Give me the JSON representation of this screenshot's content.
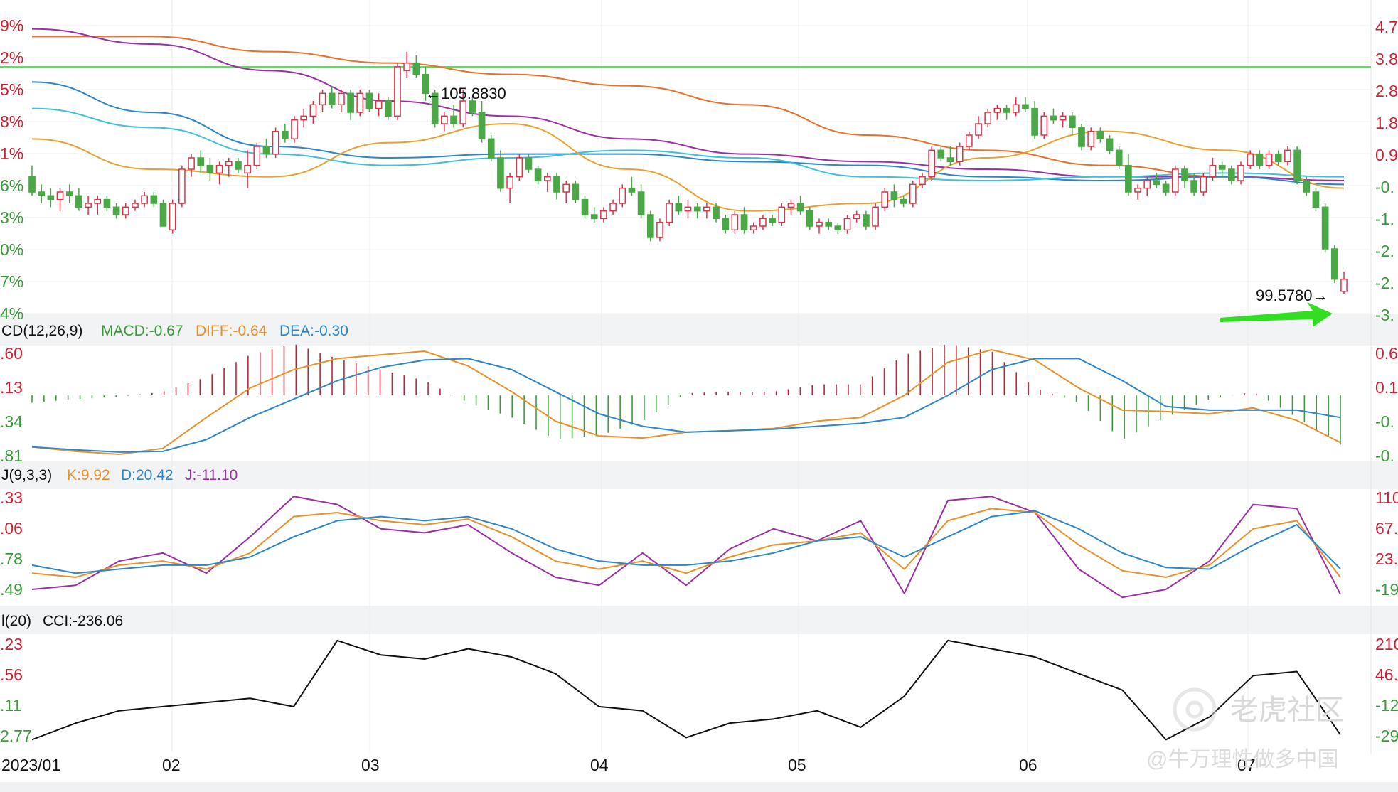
{
  "chart_data": {
    "type": "candlestick",
    "x_ticks": [
      "2023/01",
      "02",
      "03",
      "04",
      "05",
      "06",
      "07"
    ],
    "price_panel": {
      "left_axis_labels": [
        "9%",
        "2%",
        "5%",
        "8%",
        "1%",
        "6%",
        "3%",
        "0%",
        "7%",
        "4%"
      ],
      "right_axis_labels": [
        "4.7",
        "3.8",
        "2.8",
        "1.8",
        "0.9",
        "-0.",
        "-1.",
        "-2.",
        "-2.",
        "-3."
      ],
      "price_range": [
        99.2,
        106.7
      ],
      "horizontal_line": 105.5,
      "annotations": {
        "high": "←105.8830",
        "low": "99.5780→"
      },
      "candles": [
        [
          102.6,
          102.9,
          102.1,
          102.2
        ],
        [
          102.2,
          102.4,
          101.9,
          102.1
        ],
        [
          102.1,
          102.3,
          101.8,
          102.0
        ],
        [
          102.0,
          102.3,
          101.7,
          102.2
        ],
        [
          102.2,
          102.4,
          101.9,
          102.1
        ],
        [
          102.1,
          102.3,
          101.7,
          101.8
        ],
        [
          101.8,
          102.1,
          101.6,
          101.9
        ],
        [
          101.9,
          102.1,
          101.6,
          102.0
        ],
        [
          102.0,
          102.1,
          101.7,
          101.8
        ],
        [
          101.8,
          101.9,
          101.5,
          101.6
        ],
        [
          101.6,
          101.9,
          101.5,
          101.8
        ],
        [
          101.8,
          102.0,
          101.7,
          101.9
        ],
        [
          101.9,
          102.2,
          101.8,
          102.1
        ],
        [
          102.1,
          102.2,
          101.8,
          101.9
        ],
        [
          101.9,
          102.0,
          101.3,
          101.3
        ],
        [
          101.2,
          102.0,
          101.1,
          101.9
        ],
        [
          101.9,
          102.9,
          101.8,
          102.8
        ],
        [
          102.8,
          103.2,
          102.6,
          103.1
        ],
        [
          103.1,
          103.3,
          102.7,
          102.9
        ],
        [
          102.9,
          103.1,
          102.5,
          102.7
        ],
        [
          102.7,
          103.0,
          102.4,
          102.9
        ],
        [
          102.9,
          103.1,
          102.6,
          103.0
        ],
        [
          103.0,
          103.1,
          102.7,
          102.8
        ],
        [
          102.7,
          103.3,
          102.3,
          102.9
        ],
        [
          102.9,
          103.5,
          102.8,
          103.4
        ],
        [
          103.4,
          103.6,
          103.1,
          103.2
        ],
        [
          103.2,
          103.9,
          103.1,
          103.8
        ],
        [
          103.8,
          104.0,
          103.5,
          103.6
        ],
        [
          103.6,
          104.2,
          103.5,
          104.1
        ],
        [
          104.1,
          104.4,
          103.9,
          104.2
        ],
        [
          104.2,
          104.6,
          104.0,
          104.5
        ],
        [
          104.5,
          104.9,
          104.3,
          104.8
        ],
        [
          104.8,
          105.0,
          104.4,
          104.5
        ],
        [
          104.5,
          104.9,
          104.3,
          104.8
        ],
        [
          104.8,
          104.9,
          104.1,
          104.3
        ],
        [
          104.3,
          104.9,
          104.2,
          104.8
        ],
        [
          104.8,
          104.9,
          104.3,
          104.4
        ],
        [
          104.4,
          104.8,
          104.2,
          104.6
        ],
        [
          104.6,
          104.7,
          104.1,
          104.2
        ],
        [
          104.2,
          105.6,
          104.1,
          105.5
        ],
        [
          105.4,
          105.9,
          105.2,
          105.6
        ],
        [
          105.6,
          105.8,
          105.2,
          105.3
        ],
        [
          105.3,
          105.5,
          104.6,
          104.8
        ],
        [
          104.8,
          104.9,
          103.9,
          104.0
        ],
        [
          104.0,
          104.3,
          103.8,
          104.2
        ],
        [
          104.2,
          104.5,
          103.9,
          104.0
        ],
        [
          104.0,
          104.9,
          103.9,
          104.6
        ],
        [
          104.6,
          104.7,
          104.2,
          104.3
        ],
        [
          104.3,
          104.6,
          103.5,
          103.6
        ],
        [
          103.6,
          103.7,
          103.0,
          103.1
        ],
        [
          103.1,
          103.3,
          102.2,
          102.3
        ],
        [
          102.3,
          102.7,
          101.9,
          102.6
        ],
        [
          102.6,
          103.2,
          102.5,
          103.1
        ],
        [
          103.1,
          103.2,
          102.7,
          102.8
        ],
        [
          102.8,
          102.9,
          102.4,
          102.5
        ],
        [
          102.5,
          102.7,
          102.2,
          102.6
        ],
        [
          102.6,
          102.7,
          102.0,
          102.2
        ],
        [
          102.2,
          102.5,
          101.9,
          102.4
        ],
        [
          102.4,
          102.5,
          101.9,
          102.0
        ],
        [
          102.0,
          102.1,
          101.5,
          101.6
        ],
        [
          101.6,
          101.8,
          101.4,
          101.5
        ],
        [
          101.5,
          101.8,
          101.4,
          101.7
        ],
        [
          101.7,
          102.0,
          101.6,
          101.9
        ],
        [
          101.9,
          102.4,
          101.8,
          102.3
        ],
        [
          102.3,
          102.6,
          102.1,
          102.2
        ],
        [
          102.2,
          102.4,
          101.5,
          101.6
        ],
        [
          101.6,
          101.7,
          100.9,
          101.0
        ],
        [
          101.0,
          101.5,
          100.9,
          101.4
        ],
        [
          101.4,
          102.0,
          101.3,
          101.9
        ],
        [
          101.9,
          102.1,
          101.6,
          101.7
        ],
        [
          101.7,
          102.0,
          101.5,
          101.8
        ],
        [
          101.8,
          101.9,
          101.5,
          101.7
        ],
        [
          101.7,
          101.9,
          101.5,
          101.8
        ],
        [
          101.8,
          101.9,
          101.4,
          101.5
        ],
        [
          101.5,
          101.6,
          101.1,
          101.2
        ],
        [
          101.2,
          101.7,
          101.1,
          101.6
        ],
        [
          101.6,
          101.8,
          101.1,
          101.2
        ],
        [
          101.2,
          101.4,
          101.1,
          101.3
        ],
        [
          101.3,
          101.6,
          101.2,
          101.5
        ],
        [
          101.5,
          101.6,
          101.3,
          101.4
        ],
        [
          101.4,
          101.9,
          101.3,
          101.8
        ],
        [
          101.8,
          102.0,
          101.6,
          101.9
        ],
        [
          101.9,
          102.1,
          101.6,
          101.7
        ],
        [
          101.7,
          101.8,
          101.2,
          101.3
        ],
        [
          101.3,
          101.5,
          101.1,
          101.4
        ],
        [
          101.4,
          101.5,
          101.2,
          101.3
        ],
        [
          101.3,
          101.4,
          101.1,
          101.2
        ],
        [
          101.2,
          101.6,
          101.1,
          101.5
        ],
        [
          101.5,
          101.7,
          101.4,
          101.6
        ],
        [
          101.6,
          101.7,
          101.2,
          101.3
        ],
        [
          101.3,
          101.9,
          101.2,
          101.8
        ],
        [
          101.8,
          102.3,
          101.7,
          102.2
        ],
        [
          102.2,
          102.4,
          101.8,
          102.0
        ],
        [
          102.0,
          102.1,
          101.8,
          101.9
        ],
        [
          101.9,
          102.5,
          101.8,
          102.4
        ],
        [
          102.4,
          102.7,
          102.3,
          102.6
        ],
        [
          102.6,
          103.4,
          102.5,
          103.3
        ],
        [
          103.3,
          103.4,
          103.0,
          103.1
        ],
        [
          103.1,
          103.4,
          102.9,
          103.0
        ],
        [
          103.0,
          103.5,
          102.9,
          103.4
        ],
        [
          103.4,
          103.8,
          103.3,
          103.7
        ],
        [
          103.7,
          104.2,
          103.6,
          104.0
        ],
        [
          104.0,
          104.4,
          103.9,
          104.3
        ],
        [
          104.3,
          104.5,
          104.1,
          104.4
        ],
        [
          104.4,
          104.5,
          104.1,
          104.3
        ],
        [
          104.3,
          104.7,
          104.2,
          104.5
        ],
        [
          104.5,
          104.7,
          104.3,
          104.4
        ],
        [
          104.4,
          104.6,
          103.6,
          103.7
        ],
        [
          103.7,
          104.3,
          103.6,
          104.2
        ],
        [
          104.2,
          104.4,
          104.0,
          104.1
        ],
        [
          104.1,
          104.3,
          103.9,
          104.2
        ],
        [
          104.2,
          104.3,
          103.7,
          103.9
        ],
        [
          103.9,
          104.0,
          103.3,
          103.4
        ],
        [
          103.4,
          103.9,
          103.3,
          103.8
        ],
        [
          103.8,
          103.9,
          103.5,
          103.6
        ],
        [
          103.6,
          103.7,
          103.2,
          103.3
        ],
        [
          103.3,
          103.4,
          102.8,
          102.9
        ],
        [
          102.9,
          103.2,
          102.1,
          102.2
        ],
        [
          102.2,
          102.4,
          102.0,
          102.3
        ],
        [
          102.3,
          102.6,
          102.1,
          102.5
        ],
        [
          102.5,
          102.7,
          102.3,
          102.4
        ],
        [
          102.4,
          102.5,
          102.1,
          102.2
        ],
        [
          102.2,
          102.9,
          102.1,
          102.8
        ],
        [
          102.8,
          102.9,
          102.3,
          102.5
        ],
        [
          102.5,
          102.7,
          102.1,
          102.2
        ],
        [
          102.2,
          102.7,
          102.1,
          102.6
        ],
        [
          102.6,
          103.1,
          102.5,
          102.9
        ],
        [
          102.9,
          103.0,
          102.6,
          102.8
        ],
        [
          102.8,
          102.9,
          102.4,
          102.5
        ],
        [
          102.5,
          103.0,
          102.4,
          102.9
        ],
        [
          102.9,
          103.3,
          102.8,
          103.2
        ],
        [
          103.2,
          103.3,
          102.8,
          102.9
        ],
        [
          102.9,
          103.3,
          102.8,
          103.2
        ],
        [
          103.2,
          103.3,
          102.9,
          103.0
        ],
        [
          103.0,
          103.4,
          102.9,
          103.3
        ],
        [
          103.3,
          103.4,
          102.4,
          102.5
        ],
        [
          102.5,
          102.6,
          102.1,
          102.2
        ],
        [
          102.2,
          102.3,
          101.7,
          101.8
        ],
        [
          101.8,
          101.9,
          100.6,
          100.7
        ],
        [
          100.7,
          100.8,
          99.8,
          99.9
        ],
        [
          99.58,
          100.1,
          99.5,
          99.9
        ]
      ],
      "moving_averages": [
        {
          "color": "#e8702a",
          "values": [
            106.3,
            106.3,
            105.9,
            105.6,
            105.3,
            105.0,
            104.5,
            103.7,
            103.3,
            102.9,
            102.6,
            102.5
          ]
        },
        {
          "color": "#9b2fa6",
          "values": [
            106.5,
            106.1,
            105.4,
            104.6,
            104.2,
            103.6,
            103.2,
            103.0,
            102.8,
            102.6,
            102.6,
            102.5
          ]
        },
        {
          "color": "#2e86c8",
          "values": [
            105.1,
            104.3,
            103.4,
            103.1,
            103.2,
            103.2,
            103.0,
            102.9,
            102.6,
            102.5,
            102.6,
            102.4
          ]
        },
        {
          "color": "#3fc0d8",
          "values": [
            104.4,
            103.9,
            103.2,
            102.9,
            103.1,
            103.3,
            103.1,
            102.6,
            102.5,
            102.6,
            102.7,
            102.6
          ]
        },
        {
          "color": "#e8a030",
          "values": [
            103.6,
            102.8,
            102.6,
            103.5,
            104.0,
            102.8,
            101.7,
            101.9,
            103.1,
            103.8,
            103.3,
            102.3
          ]
        }
      ]
    },
    "macd": {
      "title": "CD(12,26,9)",
      "values_text": {
        "macd": "MACD:-0.67",
        "diff": "DIFF:-0.64",
        "dea": "DEA:-0.30"
      },
      "left_axis_labels": [
        ".60",
        ".13",
        ".34",
        ".81"
      ],
      "right_axis_labels": [
        "0.6",
        "0.1",
        "-0.",
        "-0."
      ],
      "range": [
        -0.81,
        0.6
      ],
      "diff": [
        -0.7,
        -0.76,
        -0.8,
        -0.72,
        -0.3,
        0.1,
        0.35,
        0.5,
        0.55,
        0.6,
        0.4,
        0.05,
        -0.35,
        -0.55,
        -0.58,
        -0.5,
        -0.48,
        -0.45,
        -0.35,
        -0.3,
        0.0,
        0.45,
        0.62,
        0.48,
        0.1,
        -0.2,
        -0.22,
        -0.25,
        -0.17,
        -0.34,
        -0.64
      ],
      "dea": [
        -0.7,
        -0.74,
        -0.77,
        -0.76,
        -0.6,
        -0.3,
        -0.05,
        0.2,
        0.38,
        0.48,
        0.5,
        0.35,
        0.05,
        -0.25,
        -0.42,
        -0.5,
        -0.48,
        -0.46,
        -0.42,
        -0.38,
        -0.3,
        0.0,
        0.35,
        0.5,
        0.5,
        0.2,
        -0.15,
        -0.2,
        -0.2,
        -0.2,
        -0.3
      ],
      "macd_bars": [
        -0.1,
        -0.05,
        -0.02,
        0.05,
        0.25,
        0.55,
        0.7,
        0.5,
        0.35,
        0.2,
        -0.1,
        -0.3,
        -0.6,
        -0.55,
        -0.35,
        0.03,
        0.05,
        0.05,
        0.15,
        0.15,
        0.55,
        0.7,
        0.6,
        0.1,
        -0.1,
        -0.6,
        -0.3,
        -0.05,
        0.05,
        -0.3,
        -0.67
      ]
    },
    "kdj": {
      "title": "J(9,3,3)",
      "values_text": {
        "k": "K:9.92",
        "d": "D:20.42",
        "j": "J:-11.10"
      },
      "left_axis_labels": [
        ".33",
        ".06",
        ".78",
        ".49"
      ],
      "right_axis_labels": [
        "110",
        "67.",
        "23.",
        "-19"
      ],
      "range": [
        -20,
        112
      ],
      "k": [
        15,
        10,
        25,
        30,
        20,
        40,
        85,
        90,
        80,
        75,
        82,
        60,
        30,
        20,
        30,
        15,
        35,
        50,
        55,
        65,
        20,
        80,
        95,
        90,
        50,
        18,
        10,
        25,
        70,
        80,
        9.92
      ],
      "d": [
        25,
        15,
        20,
        25,
        25,
        35,
        60,
        80,
        85,
        80,
        85,
        70,
        45,
        30,
        25,
        25,
        30,
        40,
        55,
        60,
        35,
        60,
        85,
        92,
        70,
        40,
        22,
        20,
        50,
        75,
        20.42
      ],
      "j": [
        -5,
        0,
        30,
        40,
        15,
        60,
        110,
        100,
        70,
        65,
        75,
        40,
        10,
        0,
        40,
        0,
        45,
        70,
        55,
        80,
        -10,
        105,
        110,
        90,
        20,
        -15,
        -5,
        30,
        100,
        95,
        -11.1
      ]
    },
    "cci": {
      "title": "l(20)",
      "values_text": {
        "cci": "CCI:-236.06"
      },
      "left_axis_labels": [
        ".23",
        ".56",
        ".11",
        "2.77"
      ],
      "right_axis_labels": [
        "210",
        "46.",
        "-12",
        "-29"
      ],
      "range": [
        -300,
        230
      ],
      "values": [
        -260,
        -180,
        -120,
        -100,
        -80,
        -60,
        -100,
        220,
        150,
        130,
        180,
        140,
        60,
        -100,
        -120,
        -250,
        -180,
        -160,
        -120,
        -200,
        -50,
        220,
        180,
        140,
        60,
        -20,
        -260,
        -150,
        50,
        70,
        -236.06
      ]
    },
    "watermark": [
      "老虎社区",
      "@牛万理性做多中国"
    ]
  }
}
